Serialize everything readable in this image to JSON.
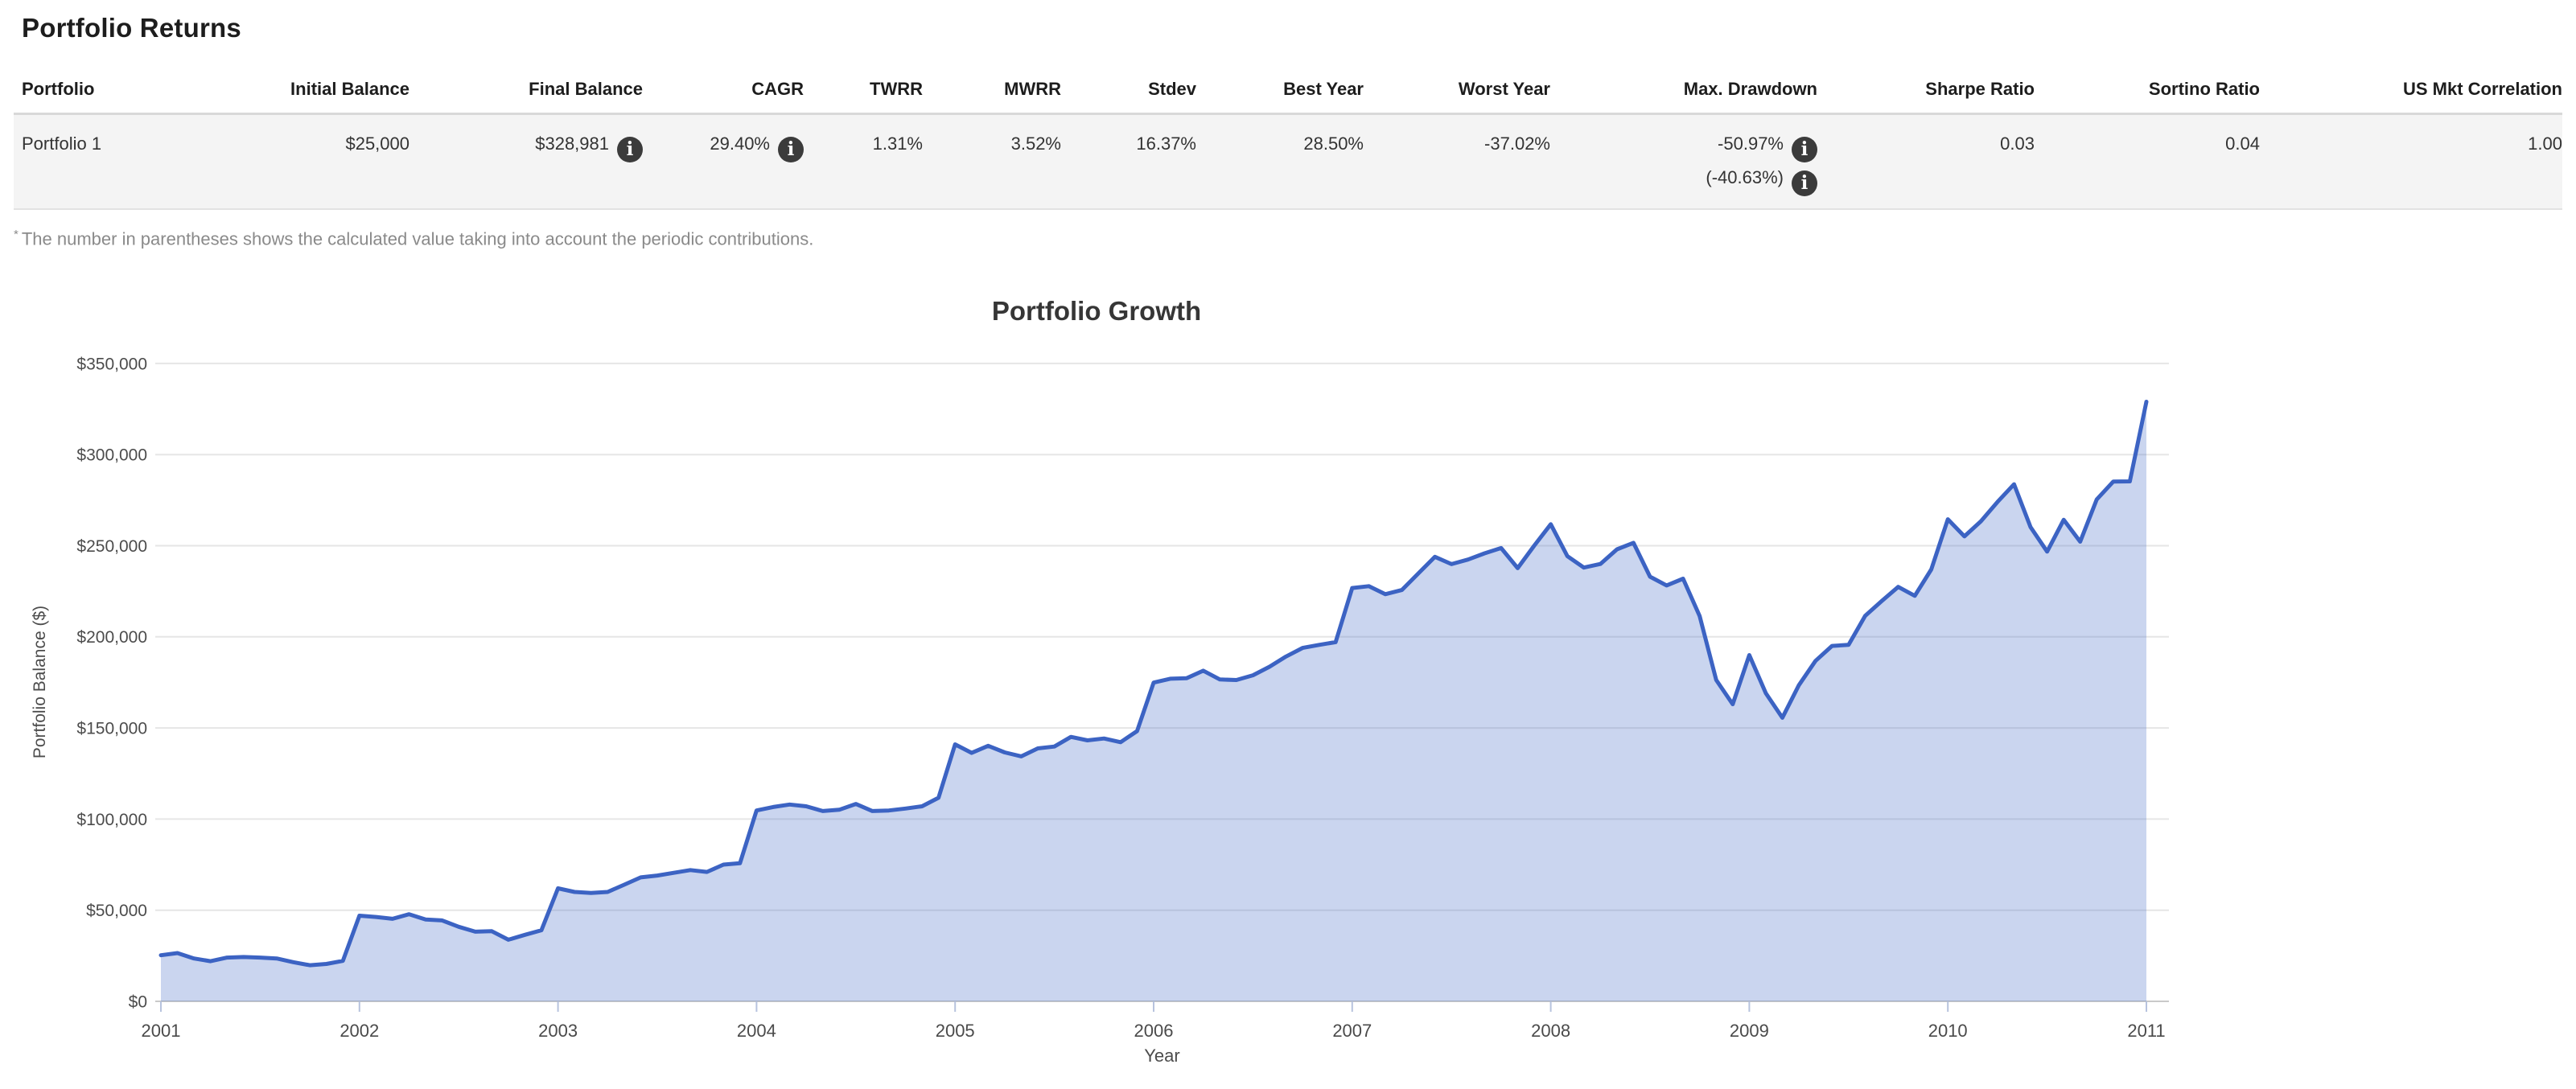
{
  "page": {
    "title": "Portfolio Returns"
  },
  "table": {
    "columns": [
      "Portfolio",
      "Initial Balance",
      "Final Balance",
      "CAGR",
      "TWRR",
      "MWRR",
      "Stdev",
      "Best Year",
      "Worst Year",
      "Max. Drawdown",
      "Sharpe Ratio",
      "Sortino Ratio",
      "US Mkt Correlation"
    ],
    "info_icon_glyph": "i",
    "row": {
      "portfolio": "Portfolio 1",
      "initial_balance": "$25,000",
      "final_balance": "$328,981",
      "cagr": "29.40%",
      "twrr": "1.31%",
      "mwrr": "3.52%",
      "stdev": "16.37%",
      "best_year": "28.50%",
      "worst_year": "-37.02%",
      "max_drawdown": "-50.97%",
      "max_drawdown_with_contributions": "(-40.63%)",
      "sharpe_ratio": "0.03",
      "sortino_ratio": "0.04",
      "us_mkt_correlation": "1.00"
    }
  },
  "footnote": {
    "marker": "*",
    "text": "The number in parentheses shows the calculated value taking into account the periodic contributions."
  },
  "chart_data": {
    "type": "area",
    "title": "Portfolio Growth",
    "xlabel": "Year",
    "ylabel": "Portfolio Balance ($)",
    "x_ticks": [
      2001,
      2002,
      2003,
      2004,
      2005,
      2006,
      2007,
      2008,
      2009,
      2010,
      2011
    ],
    "y_ticks": [
      0,
      50000,
      100000,
      150000,
      200000,
      250000,
      300000,
      350000
    ],
    "ylim": [
      0,
      350000
    ],
    "grid": true,
    "legend": "none",
    "frequency": "monthly",
    "start": "2001-01",
    "end": "2011-01",
    "line_color": "#3c63c3",
    "fill_color": "#c5cfeb",
    "values": [
      25300,
      26500,
      23500,
      22000,
      24000,
      24300,
      24000,
      23500,
      21500,
      19800,
      20500,
      22200,
      47000,
      46300,
      45300,
      47800,
      44900,
      44400,
      40900,
      38200,
      38500,
      33800,
      36500,
      39000,
      62000,
      60000,
      59500,
      60000,
      64000,
      68000,
      69000,
      70500,
      72000,
      71000,
      75000,
      75800,
      104700,
      106600,
      108000,
      107000,
      104400,
      105100,
      108300,
      104400,
      104700,
      105800,
      107000,
      111700,
      141000,
      136300,
      140200,
      136600,
      134400,
      138800,
      139800,
      145100,
      143200,
      144200,
      142200,
      148300,
      174900,
      177000,
      177300,
      181400,
      176600,
      176300,
      178900,
      183600,
      189200,
      193900,
      195600,
      197100,
      226800,
      227800,
      223400,
      225700,
      234800,
      243900,
      239900,
      242400,
      245800,
      248700,
      237700,
      250000,
      261800,
      244300,
      238000,
      240000,
      248000,
      251600,
      233000,
      228200,
      231900,
      211400,
      176300,
      163000,
      190000,
      169000,
      155600,
      173500,
      186800,
      195000,
      195600,
      211500,
      219600,
      227400,
      222500,
      237000,
      264500,
      255100,
      263400,
      274000,
      283700,
      260200,
      246800,
      264200,
      252200,
      275400,
      285200,
      285300,
      328981
    ]
  }
}
